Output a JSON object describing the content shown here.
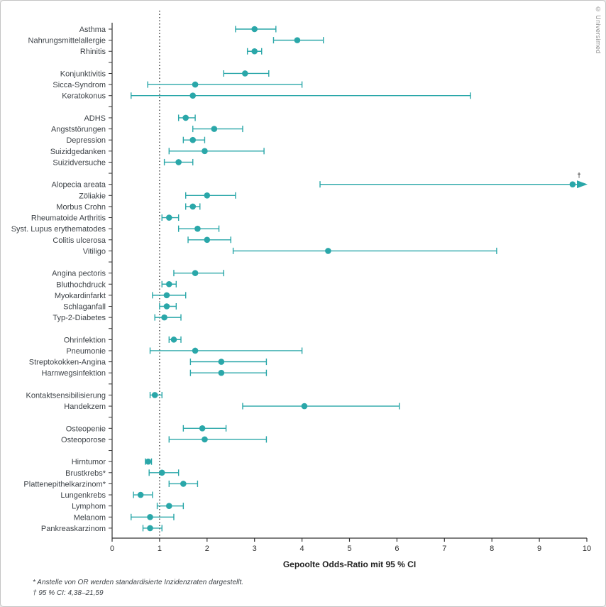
{
  "figure": {
    "watermark": "© Universimed",
    "footnotes": [
      "* Anstelle von OR werden standardisierte Inzidenzraten dargestellt.",
      "† 95 % CI: 4,38–21,59"
    ]
  },
  "chart_data": {
    "type": "forest",
    "title": "",
    "xlabel": "Gepoolte Odds-Ratio mit 95 % CI",
    "xlim": [
      0,
      10
    ],
    "xticks": [
      0,
      1,
      2,
      3,
      4,
      5,
      6,
      7,
      8,
      9,
      10
    ],
    "reference_line": 1,
    "colors": {
      "marker": "#2aa7a9",
      "axis": "#333333",
      "label": "#3d4247",
      "watermark": "#8c8c8c"
    },
    "groups": [
      {
        "rows": [
          {
            "label": "Asthma",
            "or": 3.0,
            "lo": 2.6,
            "hi": 3.45
          },
          {
            "label": "Nahrungsmittelallergie",
            "or": 3.9,
            "lo": 3.4,
            "hi": 4.45
          },
          {
            "label": "Rhinitis",
            "or": 3.0,
            "lo": 2.85,
            "hi": 3.15
          }
        ]
      },
      {
        "rows": [
          {
            "label": "Konjunktivitis",
            "or": 2.8,
            "lo": 2.35,
            "hi": 3.3
          },
          {
            "label": "Sicca-Syndrom",
            "or": 1.75,
            "lo": 0.75,
            "hi": 4.0
          },
          {
            "label": "Keratokonus",
            "or": 1.7,
            "lo": 0.4,
            "hi": 7.55
          }
        ]
      },
      {
        "rows": [
          {
            "label": "ADHS",
            "or": 1.55,
            "lo": 1.4,
            "hi": 1.75
          },
          {
            "label": "Angststörungen",
            "or": 2.15,
            "lo": 1.7,
            "hi": 2.75
          },
          {
            "label": "Depression",
            "or": 1.7,
            "lo": 1.5,
            "hi": 1.95
          },
          {
            "label": "Suizidgedanken",
            "or": 1.95,
            "lo": 1.2,
            "hi": 3.2
          },
          {
            "label": "Suizidversuche",
            "or": 1.4,
            "lo": 1.1,
            "hi": 1.7
          }
        ]
      },
      {
        "rows": [
          {
            "label": "Alopecia areata",
            "or": 9.7,
            "lo": 4.38,
            "hi": 21.59,
            "clipped": true,
            "annotation": "†"
          },
          {
            "label": "Zöliakie",
            "or": 2.0,
            "lo": 1.55,
            "hi": 2.6
          },
          {
            "label": "Morbus Crohn",
            "or": 1.7,
            "lo": 1.55,
            "hi": 1.85
          },
          {
            "label": "Rheumatoide Arthritis",
            "or": 1.2,
            "lo": 1.05,
            "hi": 1.4
          },
          {
            "label": "Syst. Lupus erythematodes",
            "or": 1.8,
            "lo": 1.4,
            "hi": 2.25
          },
          {
            "label": "Colitis ulcerosa",
            "or": 2.0,
            "lo": 1.6,
            "hi": 2.5
          },
          {
            "label": "Vitiligo",
            "or": 4.55,
            "lo": 2.55,
            "hi": 8.1
          }
        ]
      },
      {
        "rows": [
          {
            "label": "Angina pectoris",
            "or": 1.75,
            "lo": 1.3,
            "hi": 2.35
          },
          {
            "label": "Bluthochdruck",
            "or": 1.2,
            "lo": 1.05,
            "hi": 1.35
          },
          {
            "label": "Myokardinfarkt",
            "or": 1.15,
            "lo": 0.85,
            "hi": 1.55
          },
          {
            "label": "Schlaganfall",
            "or": 1.15,
            "lo": 1.0,
            "hi": 1.35
          },
          {
            "label": "Typ-2-Diabetes",
            "or": 1.1,
            "lo": 0.9,
            "hi": 1.45
          }
        ]
      },
      {
        "rows": [
          {
            "label": "Ohrinfektion",
            "or": 1.3,
            "lo": 1.2,
            "hi": 1.45
          },
          {
            "label": "Pneumonie",
            "or": 1.75,
            "lo": 0.8,
            "hi": 4.0
          },
          {
            "label": "Streptokokken-Angina",
            "or": 2.3,
            "lo": 1.65,
            "hi": 3.25
          },
          {
            "label": "Harnwegsinfektion",
            "or": 2.3,
            "lo": 1.65,
            "hi": 3.25
          }
        ]
      },
      {
        "rows": [
          {
            "label": "Kontaktsensibilisierung",
            "or": 0.9,
            "lo": 0.8,
            "hi": 1.05
          },
          {
            "label": "Handekzem",
            "or": 4.05,
            "lo": 2.75,
            "hi": 6.05
          }
        ]
      },
      {
        "rows": [
          {
            "label": "Osteopenie",
            "or": 1.9,
            "lo": 1.5,
            "hi": 2.4
          },
          {
            "label": "Osteoporose",
            "or": 1.95,
            "lo": 1.2,
            "hi": 3.25
          }
        ]
      },
      {
        "rows": [
          {
            "label": "Hirntumor",
            "or": 0.76,
            "lo": 0.7,
            "hi": 0.83
          },
          {
            "label": "Brustkrebs*",
            "or": 1.05,
            "lo": 0.78,
            "hi": 1.4
          },
          {
            "label": "Plattenepithelkarzinom*",
            "or": 1.5,
            "lo": 1.2,
            "hi": 1.8
          },
          {
            "label": "Lungenkrebs",
            "or": 0.6,
            "lo": 0.45,
            "hi": 0.85
          },
          {
            "label": "Lymphom",
            "or": 1.2,
            "lo": 0.95,
            "hi": 1.5
          },
          {
            "label": "Melanom",
            "or": 0.8,
            "lo": 0.4,
            "hi": 1.3
          },
          {
            "label": "Pankreaskarzinom",
            "or": 0.8,
            "lo": 0.65,
            "hi": 1.05
          }
        ]
      }
    ]
  }
}
